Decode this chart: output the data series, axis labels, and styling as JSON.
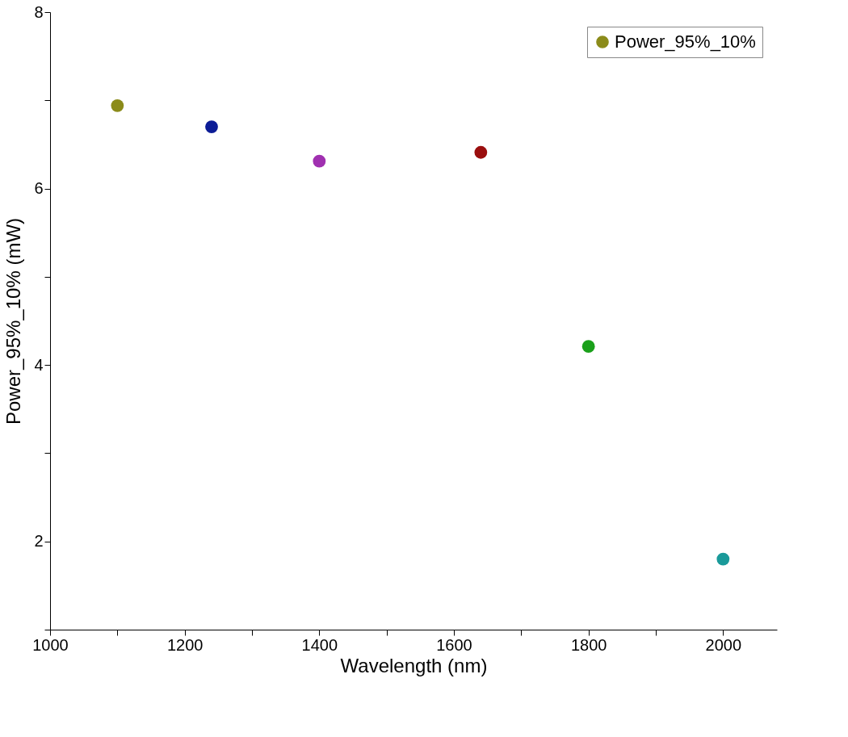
{
  "chart_data": {
    "type": "scatter",
    "xlabel": "Wavelength (nm)",
    "ylabel": "Power_95%_10% (mW)",
    "x": [
      1100,
      1240,
      1400,
      1640,
      1800,
      2000
    ],
    "series": [
      {
        "name": "Power_95%_10%",
        "color": "#8b8b1a",
        "colors": [
          "#8b8b1a",
          "#0c1c96",
          "#a030b0",
          "#9a0e0e",
          "#1aa01a",
          "#1a9a9a"
        ],
        "values": [
          6.94,
          6.7,
          6.31,
          6.41,
          4.21,
          1.8
        ]
      }
    ],
    "xlim": [
      1000,
      2080
    ],
    "ylim": [
      1,
      8
    ],
    "xticks": [
      1000,
      {
        "value": 1100,
        "label": null
      },
      1200,
      {
        "value": 1300,
        "label": null
      },
      1400,
      {
        "value": 1500,
        "label": null
      },
      1600,
      {
        "value": 1700,
        "label": null
      },
      1800,
      {
        "value": 1900,
        "label": null
      },
      2000
    ],
    "yticks": [
      {
        "value": 1,
        "label": null
      },
      2,
      {
        "value": 3,
        "label": null
      },
      4,
      {
        "value": 5,
        "label": null
      },
      6,
      {
        "value": 7,
        "label": null
      },
      8
    ],
    "marker": "circle",
    "legend": "top right",
    "grid": false
  }
}
